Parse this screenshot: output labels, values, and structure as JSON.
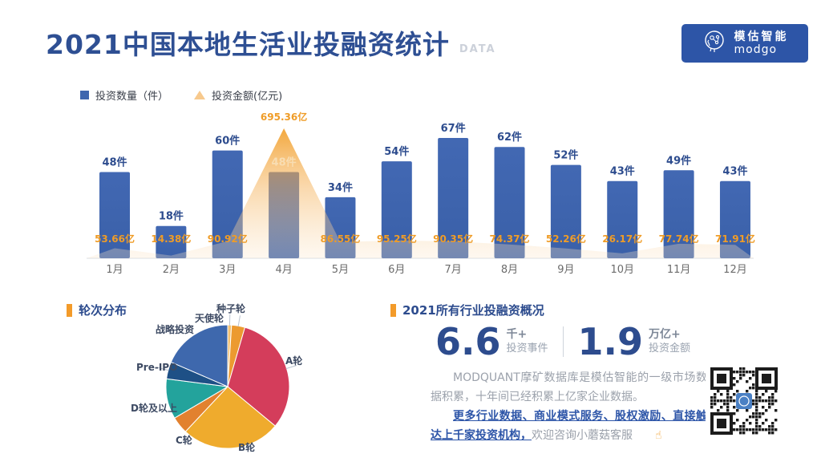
{
  "header": {
    "title": "2021中国本地生活业投融资统计",
    "tag": "DATA"
  },
  "logo": {
    "brand_cn": "模估智能",
    "brand_en": "modgo"
  },
  "legend": [
    {
      "label": "投资数量（件）",
      "color": "#3e66ae",
      "marker": "square-icon"
    },
    {
      "label": "投资金额(亿元)",
      "color": "#f7c98d",
      "marker": "triangle-icon"
    }
  ],
  "chart_data": [
    {
      "type": "bar",
      "subtype": "bar+area-combo",
      "categories": [
        "1月",
        "2月",
        "3月",
        "4月",
        "5月",
        "6月",
        "7月",
        "8月",
        "9月",
        "10月",
        "11月",
        "12月"
      ],
      "series": [
        {
          "name": "投资数量（件）",
          "type": "bar",
          "unit": "件",
          "color": "#3e66ae",
          "values": [
            48,
            18,
            60,
            48,
            34,
            54,
            67,
            62,
            52,
            43,
            49,
            43
          ]
        },
        {
          "name": "投资金额(亿元)",
          "type": "area",
          "unit": "亿",
          "color": "#f39b2a",
          "values": [
            53.66,
            14.38,
            90.92,
            695.36,
            86.55,
            95.25,
            90.35,
            74.37,
            52.26,
            26.17,
            77.74,
            71.91
          ]
        }
      ],
      "bar_max": 67,
      "area_max": 695.36,
      "grid": false,
      "legend_position": "top-left"
    },
    {
      "type": "pie",
      "title": "轮次分布",
      "slices": [
        {
          "label": "种子轮",
          "pct": 1.0,
          "color": "#f4c271"
        },
        {
          "label": "天使轮",
          "pct": 3.5,
          "color": "#ec9a30"
        },
        {
          "label": "A轮",
          "pct": 31.5,
          "color": "#d43d5b"
        },
        {
          "label": "B轮",
          "pct": 26.0,
          "color": "#efab2d"
        },
        {
          "label": "C轮",
          "pct": 4.5,
          "color": "#e2812f"
        },
        {
          "label": "D轮及以上",
          "pct": 10.5,
          "color": "#23a39c"
        },
        {
          "label": "Pre-IPO",
          "pct": 4.5,
          "color": "#1e5086"
        },
        {
          "label": "战略投资",
          "pct": 18.5,
          "color": "#3e68ad"
        }
      ],
      "legend_position": "none"
    }
  ],
  "overview": {
    "title": "2021所有行业投融资概况",
    "stats": [
      {
        "value": "6.6",
        "unit": "千+",
        "label": "投资事件"
      },
      {
        "value": "1.9",
        "unit": "万亿+",
        "label": "投资金额"
      }
    ],
    "para1": "MODQUANT摩矿数据库是模估智能的一级市场数据积累，十年间已经积累上亿家企业数据。",
    "para2_highlight": "更多行业数据、商业模式服务、股权激励、直接触达上千家投资机构，",
    "para2_rest": "欢迎咨询小蘑菇客服",
    "pointer_icon": "☝"
  },
  "colors": {
    "accent_blue": "#2d4c8e",
    "bar_blue": "#3e66ae",
    "accent_orange": "#f39b2a",
    "amount_label_orange": "#ef9c27",
    "title_blue": "#2e4f93"
  }
}
